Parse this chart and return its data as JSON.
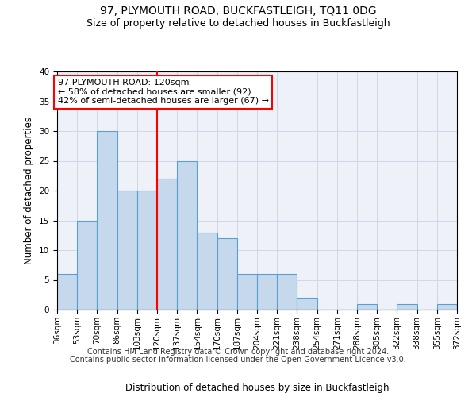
{
  "title": "97, PLYMOUTH ROAD, BUCKFASTLEIGH, TQ11 0DG",
  "subtitle": "Size of property relative to detached houses in Buckfastleigh",
  "xlabel": "Distribution of detached houses by size in Buckfastleigh",
  "ylabel": "Number of detached properties",
  "bar_values": [
    6,
    15,
    30,
    20,
    20,
    22,
    25,
    13,
    12,
    6,
    6,
    6,
    2,
    0,
    0,
    1,
    0,
    1,
    0,
    1
  ],
  "categories": [
    "36sqm",
    "53sqm",
    "70sqm",
    "86sqm",
    "103sqm",
    "120sqm",
    "137sqm",
    "154sqm",
    "170sqm",
    "187sqm",
    "204sqm",
    "221sqm",
    "238sqm",
    "254sqm",
    "271sqm",
    "288sqm",
    "305sqm",
    "322sqm",
    "338sqm",
    "355sqm",
    "372sqm"
  ],
  "bar_color": "#c6d9ec",
  "bar_edge_color": "#5a9fd4",
  "vline_x": 5,
  "vline_color": "red",
  "annotation_text": "97 PLYMOUTH ROAD: 120sqm\n← 58% of detached houses are smaller (92)\n42% of semi-detached houses are larger (67) →",
  "annotation_box_color": "white",
  "annotation_box_edge_color": "red",
  "ylim": [
    0,
    40
  ],
  "yticks": [
    0,
    5,
    10,
    15,
    20,
    25,
    30,
    35,
    40
  ],
  "grid_color": "#d0d8e8",
  "background_color": "#eef2f8",
  "footer_line1": "Contains HM Land Registry data © Crown copyright and database right 2024.",
  "footer_line2": "Contains public sector information licensed under the Open Government Licence v3.0.",
  "title_fontsize": 10,
  "subtitle_fontsize": 9,
  "axis_label_fontsize": 8.5,
  "tick_fontsize": 7.5,
  "annotation_fontsize": 8,
  "footer_fontsize": 7
}
